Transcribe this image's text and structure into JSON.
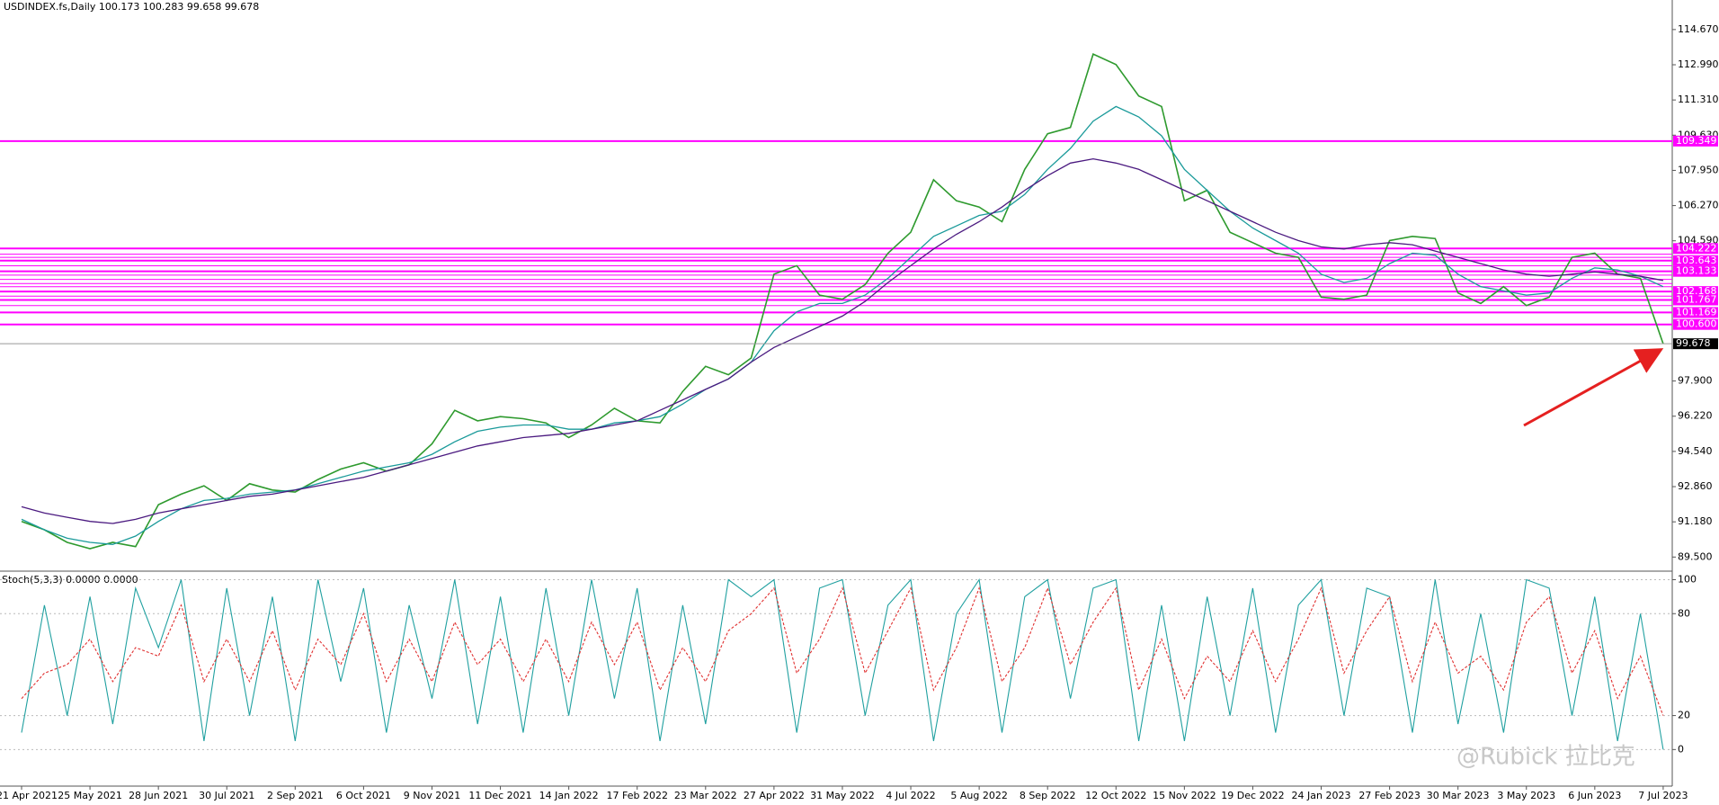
{
  "chart_data": [
    {
      "type": "line",
      "title": "USDINDEX.fs,Daily  100.173 100.283 99.658 99.678",
      "categories": [
        "21 Apr 2021",
        null,
        null,
        "25 May 2021",
        null,
        null,
        "28 Jun 2021",
        null,
        null,
        "30 Jul 2021",
        null,
        null,
        "2 Sep 2021",
        null,
        null,
        "6 Oct 2021",
        null,
        null,
        "9 Nov 2021",
        null,
        null,
        "11 Dec 2021",
        null,
        null,
        "14 Jan 2022",
        null,
        null,
        "17 Feb 2022",
        null,
        null,
        "23 Mar 2022",
        null,
        null,
        "27 Apr 2022",
        null,
        null,
        "31 May 2022",
        null,
        null,
        "4 Jul 2022",
        null,
        null,
        "5 Aug 2022",
        null,
        null,
        "8 Sep 2022",
        null,
        null,
        "12 Oct 2022",
        null,
        null,
        "15 Nov 2022",
        null,
        null,
        "19 Dec 2022",
        null,
        null,
        "24 Jan 2023",
        null,
        null,
        "27 Feb 2023",
        null,
        null,
        "30 Mar 2023",
        null,
        null,
        "3 May 2023",
        null,
        null,
        "6 Jun 2023",
        null,
        null,
        "7 Jul 2023"
      ],
      "series": [
        {
          "color": "#2e9a2e",
          "values": [
            91.2,
            90.8,
            90.2,
            89.9,
            90.2,
            90.0,
            92.0,
            92.5,
            92.9,
            92.2,
            93.0,
            92.7,
            92.6,
            93.2,
            93.7,
            94.0,
            93.6,
            93.9,
            94.9,
            96.5,
            96.0,
            96.2,
            96.1,
            95.9,
            95.2,
            95.8,
            96.6,
            96.0,
            95.9,
            97.4,
            98.6,
            98.2,
            99.0,
            103.0,
            103.4,
            102.0,
            101.8,
            102.5,
            104.0,
            105.0,
            107.5,
            106.5,
            106.2,
            105.5,
            108.0,
            109.7,
            110.0,
            113.5,
            113.0,
            111.5,
            111.0,
            106.5,
            107.0,
            105.0,
            104.5,
            104.0,
            103.8,
            101.9,
            101.8,
            102.0,
            104.6,
            104.8,
            104.7,
            102.1,
            101.6,
            102.4,
            101.5,
            101.9,
            103.8,
            104.0,
            103.0,
            102.8,
            99.678
          ]
        },
        {
          "color": "#1a9a9a",
          "values": [
            91.3,
            90.8,
            90.4,
            90.2,
            90.1,
            90.5,
            91.2,
            91.8,
            92.2,
            92.3,
            92.5,
            92.6,
            92.7,
            93.0,
            93.3,
            93.6,
            93.8,
            94.0,
            94.4,
            95.0,
            95.5,
            95.7,
            95.8,
            95.8,
            95.6,
            95.6,
            95.9,
            96.0,
            96.2,
            96.8,
            97.5,
            98.0,
            98.8,
            100.3,
            101.2,
            101.6,
            101.6,
            102.0,
            102.8,
            103.8,
            104.8,
            105.3,
            105.8,
            106.0,
            106.8,
            108.0,
            109.0,
            110.3,
            111.0,
            110.5,
            109.6,
            108.0,
            107.0,
            106.0,
            105.2,
            104.6,
            104.0,
            103.0,
            102.6,
            102.8,
            103.5,
            104.0,
            103.9,
            103.0,
            102.4,
            102.2,
            102.0,
            102.1,
            102.8,
            103.3,
            103.2,
            102.9,
            102.4
          ]
        },
        {
          "color": "#4b1a80",
          "values": [
            91.9,
            91.6,
            91.4,
            91.2,
            91.1,
            91.3,
            91.6,
            91.8,
            92.0,
            92.2,
            92.4,
            92.5,
            92.7,
            92.9,
            93.1,
            93.3,
            93.6,
            93.9,
            94.2,
            94.5,
            94.8,
            95.0,
            95.2,
            95.3,
            95.4,
            95.6,
            95.8,
            96.0,
            96.5,
            97.0,
            97.5,
            98.0,
            98.8,
            99.5,
            100.0,
            100.5,
            101.0,
            101.7,
            102.6,
            103.4,
            104.2,
            104.9,
            105.5,
            106.2,
            107.0,
            107.7,
            108.3,
            108.5,
            108.3,
            108.0,
            107.5,
            107.0,
            106.5,
            106.0,
            105.5,
            105.0,
            104.6,
            104.3,
            104.2,
            104.4,
            104.5,
            104.4,
            104.1,
            103.8,
            103.5,
            103.2,
            103.0,
            102.9,
            103.0,
            103.1,
            103.0,
            102.9,
            102.7
          ]
        }
      ],
      "ylim": [
        88.87,
        116.08
      ],
      "yticks": [
        {
          "value": 114.67,
          "label": "114.670"
        },
        {
          "value": 112.99,
          "label": "112.990"
        },
        {
          "value": 111.31,
          "label": "111.310"
        },
        {
          "value": 109.63,
          "label": "109.630"
        },
        {
          "value": 107.95,
          "label": "107.950"
        },
        {
          "value": 106.27,
          "label": "106.270"
        },
        {
          "value": 104.59,
          "label": "104.590"
        },
        {
          "value": 97.9,
          "label": "97.900"
        },
        {
          "value": 96.22,
          "label": "96.220"
        },
        {
          "value": 94.54,
          "label": "94.540"
        },
        {
          "value": 92.86,
          "label": "92.860"
        },
        {
          "value": 91.18,
          "label": "91.180"
        },
        {
          "value": 89.5,
          "label": "89.500"
        }
      ],
      "levels_color": "#ff00ff",
      "levels": [
        {
          "value": 109.349,
          "label": "109.349"
        },
        {
          "value": 104.222,
          "label": "104.222"
        },
        {
          "value": 103.643,
          "label": "103.643"
        },
        {
          "value": 103.133,
          "label": "103.133"
        },
        {
          "value": 102.168,
          "label": "102.168"
        },
        {
          "value": 101.767,
          "label": "101.767"
        },
        {
          "value": 101.169,
          "label": "101.169"
        },
        {
          "value": 100.6,
          "label": "100.600"
        }
      ],
      "minor_levels": [
        103.95,
        103.8,
        103.4,
        102.95,
        102.75,
        102.55,
        102.4,
        101.95,
        101.5
      ],
      "last_price": {
        "value": 99.678,
        "label": "99.678"
      }
    },
    {
      "type": "stochastic",
      "title": "Stoch(5,3,3) 0.0000 0.0000",
      "series": [
        {
          "color": "#20a0a0",
          "values": [
            10,
            85,
            20,
            90,
            15,
            95,
            60,
            100,
            5,
            95,
            20,
            90,
            5,
            100,
            40,
            95,
            10,
            85,
            30,
            100,
            15,
            90,
            10,
            95,
            20,
            100,
            30,
            95,
            5,
            85,
            15,
            100,
            90,
            100,
            10,
            95,
            100,
            20,
            85,
            100,
            5,
            80,
            100,
            10,
            90,
            100,
            30,
            95,
            100,
            5,
            85,
            5,
            90,
            20,
            95,
            10,
            85,
            100,
            20,
            95,
            90,
            10,
            100,
            15,
            80,
            10,
            100,
            95,
            20,
            90,
            5,
            80,
            0
          ]
        },
        {
          "color": "#e03030",
          "values": [
            30,
            45,
            50,
            65,
            40,
            60,
            55,
            85,
            40,
            65,
            40,
            70,
            35,
            65,
            50,
            80,
            40,
            65,
            40,
            75,
            50,
            65,
            40,
            65,
            40,
            75,
            50,
            75,
            35,
            60,
            40,
            70,
            80,
            95,
            45,
            65,
            95,
            45,
            70,
            95,
            35,
            60,
            95,
            40,
            60,
            95,
            50,
            75,
            95,
            35,
            65,
            30,
            55,
            40,
            70,
            40,
            65,
            95,
            45,
            70,
            90,
            40,
            75,
            45,
            55,
            35,
            75,
            90,
            45,
            70,
            30,
            55,
            20
          ]
        }
      ],
      "ylim": [
        -21,
        104.5
      ],
      "yticks": [
        100,
        80,
        20,
        0
      ],
      "grid": true
    }
  ],
  "watermark": "@Rubick 拉比克"
}
